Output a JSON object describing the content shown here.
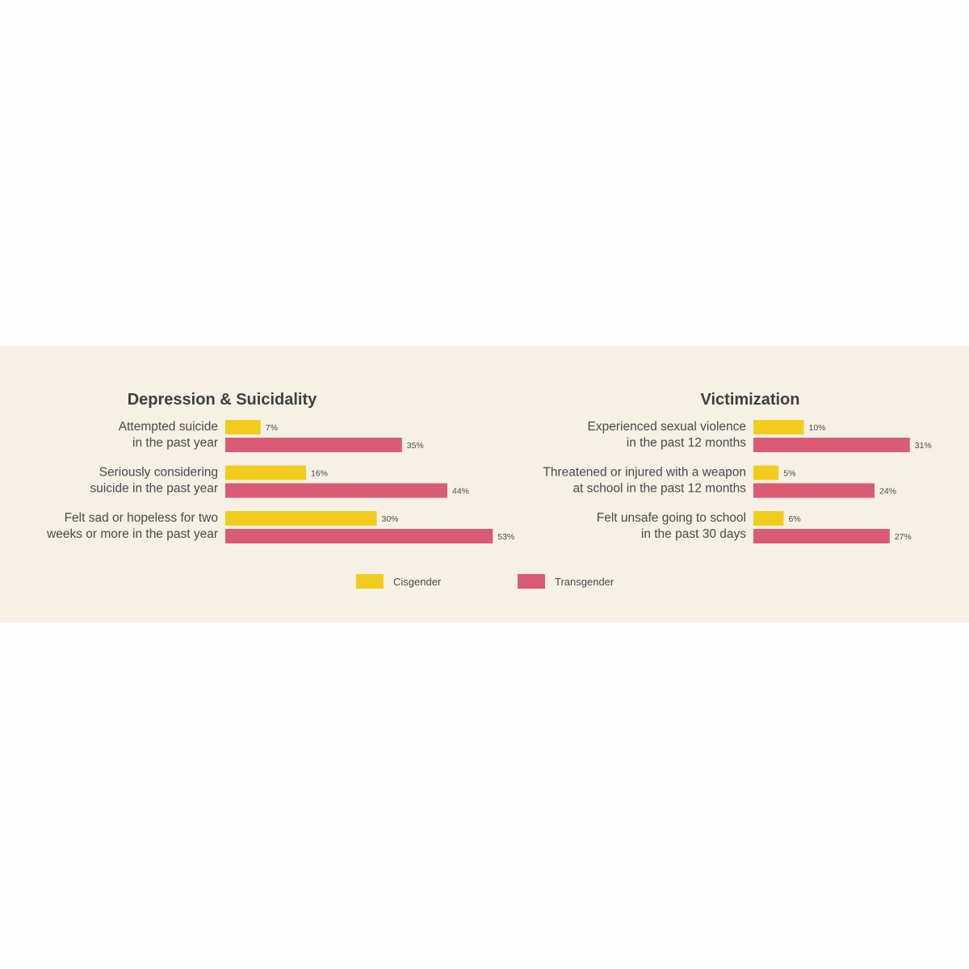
{
  "colors": {
    "background": "#f6f0e5",
    "cisgender": "#f2cc1c",
    "transgender": "#d95b74"
  },
  "legend": {
    "position": "bottom-center",
    "items": [
      {
        "label": "Cisgender",
        "color": "#f2cc1c"
      },
      {
        "label": "Transgender",
        "color": "#d95b74"
      }
    ]
  },
  "chart_data": [
    {
      "type": "bar",
      "orientation": "horizontal",
      "title": "Depression & Suicidality",
      "categories": [
        [
          "Attempted suicide",
          "in the past year"
        ],
        [
          "Seriously considering",
          "suicide in the past year"
        ],
        [
          "Felt sad or hopeless for two",
          "weeks or more in the past year"
        ]
      ],
      "series": [
        {
          "name": "Cisgender",
          "values": [
            7,
            16,
            30
          ],
          "labels": [
            "7%",
            "16%",
            "30%"
          ]
        },
        {
          "name": "Transgender",
          "values": [
            35,
            44,
            53
          ],
          "labels": [
            "35%",
            "44%",
            "53%"
          ]
        }
      ],
      "unit": "%",
      "grid": false
    },
    {
      "type": "bar",
      "orientation": "horizontal",
      "title": "Victimization",
      "categories": [
        [
          "Experienced sexual violence",
          "in the past 12 months"
        ],
        [
          "Threatened or injured with a weapon",
          "at school in the past 12 months"
        ],
        [
          "Felt unsafe going to school",
          "in the past 30 days"
        ]
      ],
      "series": [
        {
          "name": "Cisgender",
          "values": [
            10,
            5,
            6
          ],
          "labels": [
            "10%",
            "5%",
            "6%"
          ]
        },
        {
          "name": "Transgender",
          "values": [
            31,
            24,
            27
          ],
          "labels": [
            "31%",
            "24%",
            "27%"
          ]
        }
      ],
      "unit": "%",
      "grid": false
    }
  ]
}
